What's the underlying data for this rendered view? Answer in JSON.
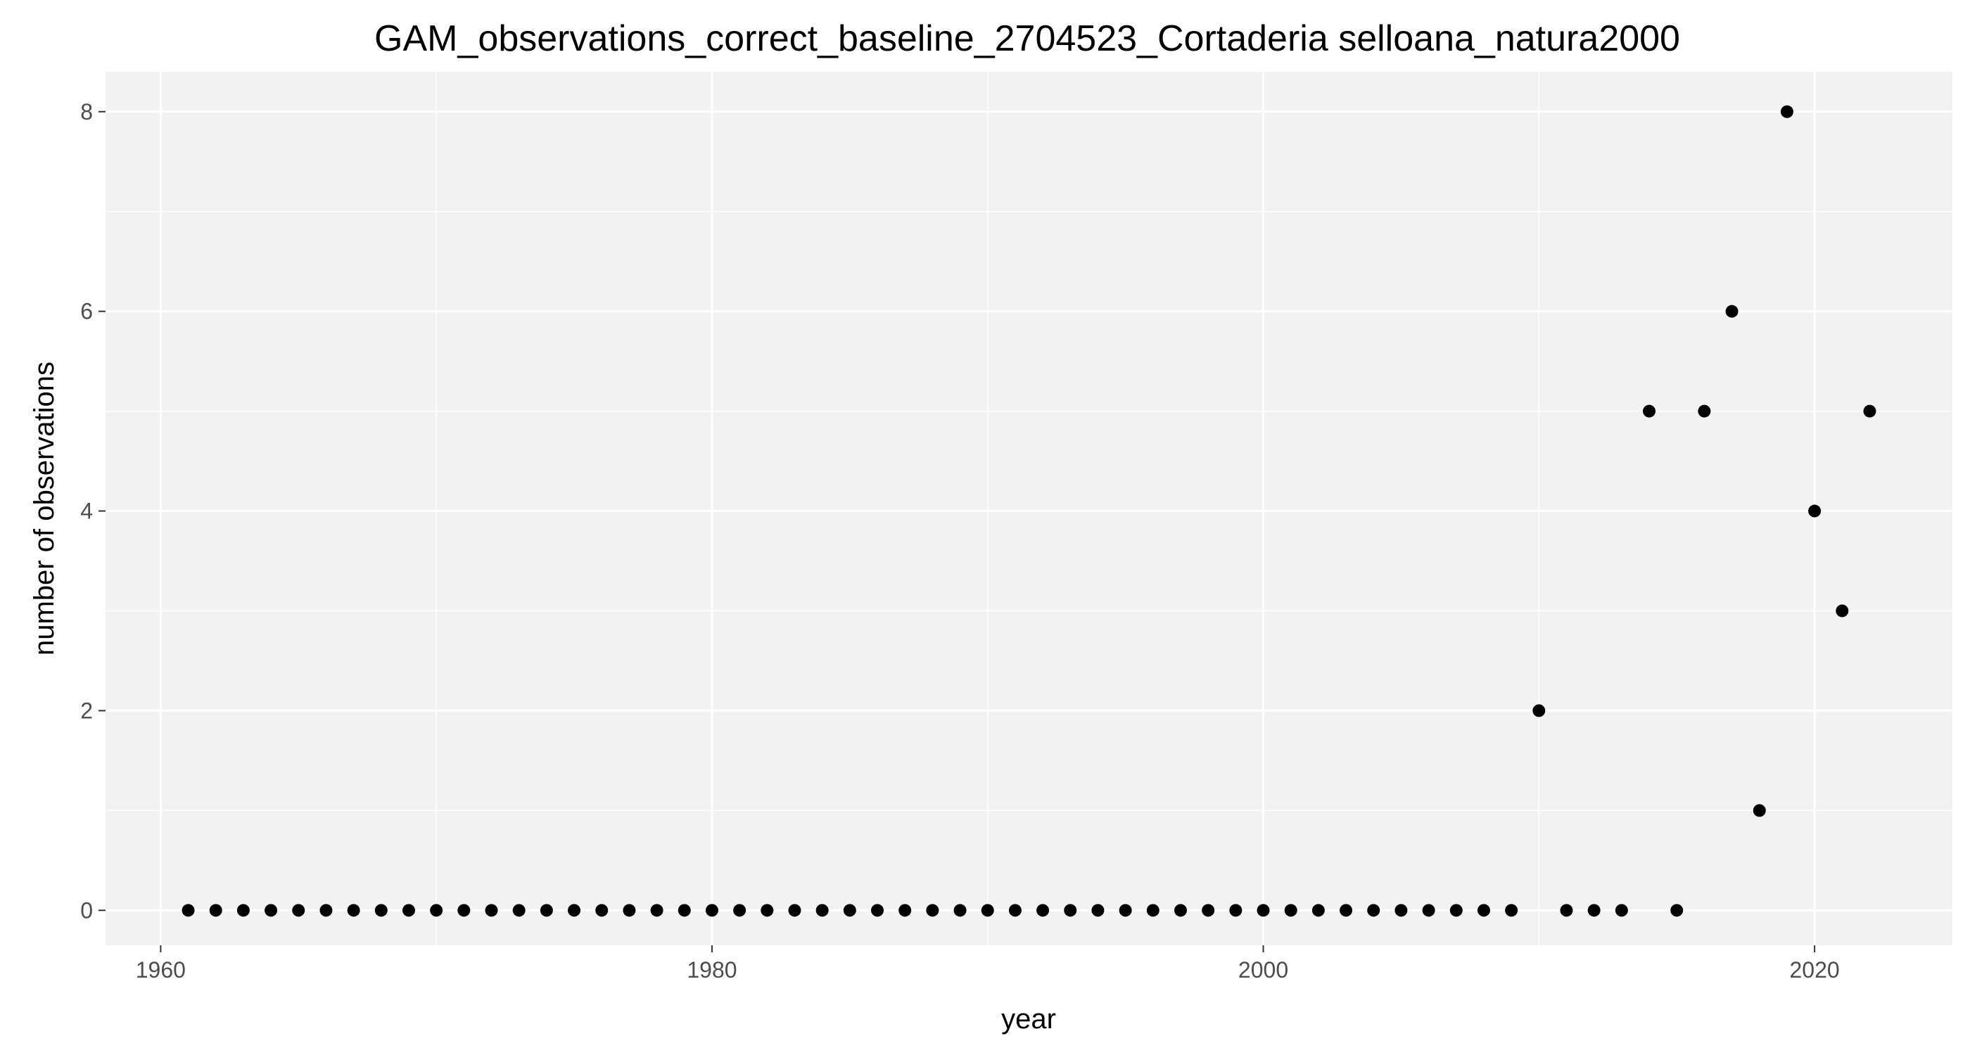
{
  "chart_data": {
    "type": "scatter",
    "title": "GAM_observations_correct_baseline_2704523_Cortaderia selloana_natura2000",
    "xlabel": "year",
    "ylabel": "number of observations",
    "xlim": [
      1958,
      2025
    ],
    "ylim": [
      -0.35,
      8.4
    ],
    "x_ticks": [
      1960,
      1980,
      2000,
      2020
    ],
    "y_ticks": [
      0,
      2,
      4,
      6,
      8
    ],
    "grid": true,
    "legend": "none",
    "colors": {
      "panel": "#f2f2f2",
      "grid": "#ffffff",
      "point": "#000000",
      "tick": "#333333"
    },
    "series": [
      {
        "x": [
          1961,
          1962,
          1963,
          1964,
          1965,
          1966,
          1967,
          1968,
          1969,
          1970,
          1971,
          1972,
          1973,
          1974,
          1975,
          1976,
          1977,
          1978,
          1979,
          1980,
          1981,
          1982,
          1983,
          1984,
          1985,
          1986,
          1987,
          1988,
          1989,
          1990,
          1991,
          1992,
          1993,
          1994,
          1995,
          1996,
          1997,
          1998,
          1999,
          2000,
          2001,
          2002,
          2003,
          2004,
          2005,
          2006,
          2007,
          2008,
          2009,
          2010,
          2011,
          2012,
          2013,
          2014,
          2015,
          2016,
          2017,
          2018,
          2019,
          2020,
          2021,
          2022
        ],
        "y": [
          0,
          0,
          0,
          0,
          0,
          0,
          0,
          0,
          0,
          0,
          0,
          0,
          0,
          0,
          0,
          0,
          0,
          0,
          0,
          0,
          0,
          0,
          0,
          0,
          0,
          0,
          0,
          0,
          0,
          0,
          0,
          0,
          0,
          0,
          0,
          0,
          0,
          0,
          0,
          0,
          0,
          0,
          0,
          0,
          0,
          0,
          0,
          0,
          0,
          2,
          0,
          0,
          0,
          5,
          0,
          5,
          6,
          1,
          8,
          4,
          3,
          5
        ]
      }
    ]
  }
}
